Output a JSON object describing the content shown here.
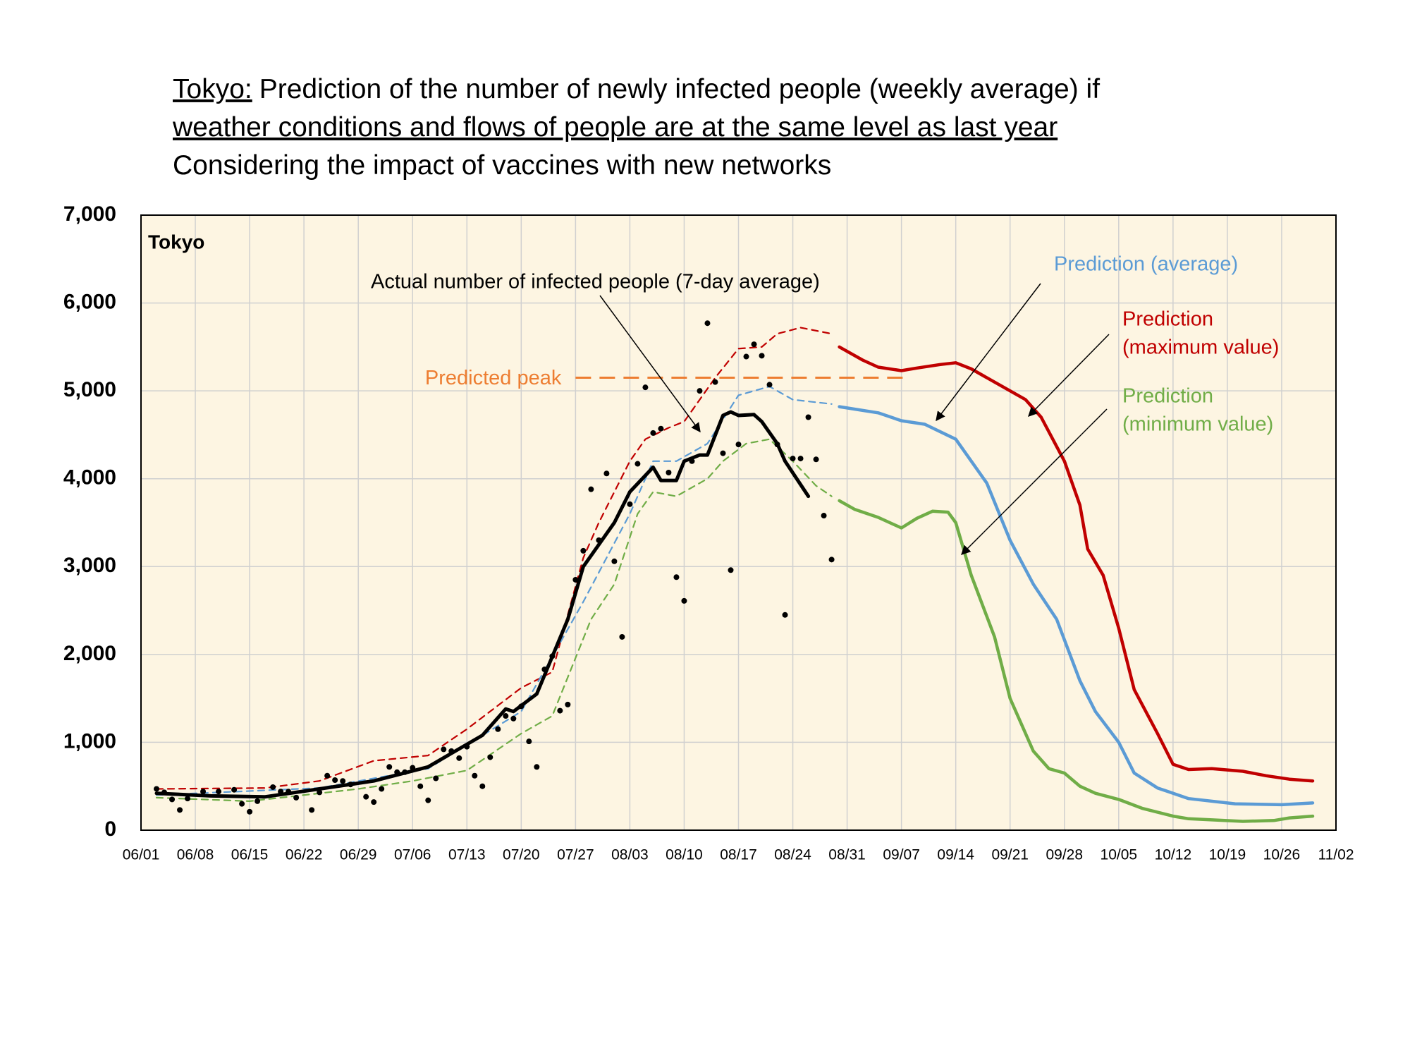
{
  "chart_data": {
    "type": "line",
    "title": [
      [
        {
          "text": "Tokyo:",
          "underline": true
        },
        {
          "text": "Prediction of the number of newly infected people (weekly average) if",
          "underline": false
        }
      ],
      [
        {
          "text": "weather conditions and flows of people are at the same level as last year",
          "underline": true
        }
      ],
      [
        {
          "text": "Considering the impact of vaccines with new networks",
          "underline": false
        }
      ]
    ],
    "inset_label": "Tokyo",
    "xlim": [
      "06/01",
      "11/02"
    ],
    "xticks": [
      "06/01",
      "06/08",
      "06/15",
      "06/22",
      "06/29",
      "07/06",
      "07/13",
      "07/20",
      "07/27",
      "08/03",
      "08/10",
      "08/17",
      "08/24",
      "08/31",
      "09/07",
      "09/14",
      "09/21",
      "09/28",
      "10/05",
      "10/12",
      "10/19",
      "10/26",
      "11/02"
    ],
    "ylim": [
      0,
      7000
    ],
    "yticks": [
      0,
      {
        "value": 1000,
        "label": "1,000"
      },
      {
        "value": 2000,
        "label": "2,000"
      },
      {
        "value": 3000,
        "label": "3,000"
      },
      {
        "value": 4000,
        "label": "4,000"
      },
      {
        "value": 5000,
        "label": "5,000"
      },
      {
        "value": 6000,
        "label": "6,000"
      },
      {
        "value": 7000,
        "label": "7,000"
      }
    ],
    "grid": true,
    "series": [
      {
        "color": "#c00000",
        "dash": true,
        "x": [
          "06/03",
          "06/17",
          "06/24",
          "07/01",
          "07/08",
          "07/13",
          "07/20",
          "07/24",
          "07/28",
          "07/30",
          "08/03",
          "08/05",
          "08/08",
          "08/10",
          "08/14",
          "08/17",
          "08/20",
          "08/22",
          "08/25",
          "08/29"
        ],
        "values": [
          470,
          480,
          560,
          790,
          850,
          1150,
          1620,
          1800,
          3100,
          3500,
          4200,
          4450,
          4580,
          4650,
          5150,
          5480,
          5500,
          5650,
          5720,
          5650
        ]
      },
      {
        "color": "#5b9bd5",
        "dash": true,
        "x": [
          "06/03",
          "06/24",
          "07/08",
          "07/20",
          "07/28",
          "08/03",
          "08/06",
          "08/09",
          "08/13",
          "08/17",
          "08/21",
          "08/24",
          "08/29"
        ],
        "values": [
          400,
          480,
          700,
          1350,
          2600,
          3600,
          4200,
          4200,
          4400,
          4950,
          5050,
          4900,
          4850
        ]
      },
      {
        "color": "#70ad47",
        "dash": true,
        "x": [
          "06/03",
          "06/15",
          "06/29",
          "07/06",
          "07/13",
          "07/20",
          "07/24",
          "07/29",
          "08/01",
          "08/04",
          "08/06",
          "08/09",
          "08/13",
          "08/15",
          "08/18",
          "08/21",
          "08/24",
          "08/27",
          "08/29"
        ],
        "values": [
          370,
          330,
          470,
          560,
          680,
          1100,
          1300,
          2400,
          2800,
          3600,
          3850,
          3800,
          4000,
          4200,
          4400,
          4450,
          4200,
          3920,
          3800
        ]
      },
      {
        "color": "#c00000",
        "dash": false,
        "x": [
          "08/30",
          "09/02",
          "09/04",
          "09/07",
          "09/09",
          "09/12",
          "09/14",
          "09/16",
          "09/19",
          "09/23",
          "09/25",
          "09/28",
          "09/30",
          "10/01",
          "10/03",
          "10/05",
          "10/07",
          "10/10",
          "10/12",
          "10/14",
          "10/17",
          "10/21",
          "10/24",
          "10/27",
          "10/30"
        ],
        "values": [
          5500,
          5350,
          5270,
          5230,
          5260,
          5300,
          5320,
          5250,
          5100,
          4900,
          4700,
          4200,
          3700,
          3200,
          2900,
          2300,
          1600,
          1100,
          750,
          690,
          700,
          670,
          620,
          580,
          560
        ]
      },
      {
        "color": "#5b9bd5",
        "dash": false,
        "x": [
          "08/30",
          "09/04",
          "09/07",
          "09/10",
          "09/14",
          "09/18",
          "09/21",
          "09/24",
          "09/27",
          "09/30",
          "10/02",
          "10/05",
          "10/07",
          "10/10",
          "10/14",
          "10/20",
          "10/26",
          "10/30"
        ],
        "values": [
          4820,
          4750,
          4660,
          4620,
          4450,
          3950,
          3300,
          2800,
          2400,
          1700,
          1350,
          1000,
          650,
          480,
          360,
          300,
          290,
          310
        ]
      },
      {
        "color": "#70ad47",
        "dash": false,
        "x": [
          "08/30",
          "09/01",
          "09/04",
          "09/07",
          "09/09",
          "09/11",
          "09/13",
          "09/14",
          "09/16",
          "09/19",
          "09/21",
          "09/24",
          "09/26",
          "09/28",
          "09/30",
          "10/02",
          "10/05",
          "10/08",
          "10/12",
          "10/14",
          "10/21",
          "10/25",
          "10/27",
          "10/30"
        ],
        "values": [
          3750,
          3650,
          3560,
          3440,
          3550,
          3630,
          3620,
          3500,
          2900,
          2200,
          1500,
          900,
          700,
          650,
          500,
          420,
          350,
          250,
          160,
          130,
          100,
          110,
          140,
          160
        ]
      },
      {
        "color": "#000000",
        "dash": false,
        "bold": true,
        "x": [
          "06/03",
          "06/10",
          "06/17",
          "06/24",
          "07/01",
          "07/08",
          "07/15",
          "07/18",
          "07/19",
          "07/22",
          "07/26",
          "07/28",
          "08/01",
          "08/03",
          "08/06",
          "08/07",
          "08/09",
          "08/10",
          "08/12",
          "08/13",
          "08/15",
          "08/16",
          "08/17",
          "08/19",
          "08/20",
          "08/22",
          "08/23",
          "08/26"
        ],
        "values": [
          420,
          390,
          380,
          470,
          560,
          720,
          1080,
          1380,
          1350,
          1550,
          2400,
          3000,
          3500,
          3850,
          4130,
          3980,
          3980,
          4200,
          4270,
          4270,
          4720,
          4760,
          4720,
          4730,
          4650,
          4400,
          4200,
          3800
        ]
      },
      {
        "color": "#000000",
        "dots": true,
        "x": [
          "06/03",
          "06/04",
          "06/05",
          "06/06",
          "06/07",
          "06/09",
          "06/11",
          "06/13",
          "06/14",
          "06/15",
          "06/16",
          "06/18",
          "06/19",
          "06/20",
          "06/21",
          "06/23",
          "06/24",
          "06/25",
          "06/26",
          "06/27",
          "06/28",
          "06/30",
          "07/01",
          "07/02",
          "07/03",
          "07/04",
          "07/05",
          "07/06",
          "07/07",
          "07/08",
          "07/09",
          "07/10",
          "07/11",
          "07/12",
          "07/13",
          "07/14",
          "07/15",
          "07/16",
          "07/17",
          "07/18",
          "07/19",
          "07/20",
          "07/21",
          "07/22",
          "07/23",
          "07/24",
          "07/25",
          "07/26",
          "07/27",
          "07/28",
          "07/29",
          "07/30",
          "07/31",
          "08/01",
          "08/02",
          "08/03",
          "08/04",
          "08/05",
          "08/06",
          "08/07",
          "08/08",
          "08/09",
          "08/10",
          "08/11",
          "08/12",
          "08/13",
          "08/14",
          "08/15",
          "08/16",
          "08/17",
          "08/18",
          "08/19",
          "08/20",
          "08/21",
          "08/22",
          "08/23",
          "08/24",
          "08/25",
          "08/26",
          "08/27",
          "08/28",
          "08/29"
        ],
        "values": [
          470,
          430,
          350,
          230,
          360,
          440,
          440,
          460,
          300,
          210,
          330,
          490,
          440,
          440,
          370,
          230,
          430,
          620,
          570,
          560,
          520,
          380,
          320,
          470,
          720,
          660,
          660,
          710,
          500,
          340,
          590,
          920,
          900,
          820,
          950,
          620,
          500,
          830,
          1150,
          1300,
          1270,
          1410,
          1010,
          720,
          1830,
          1980,
          1360,
          1430,
          2850,
          3180,
          3880,
          3300,
          4060,
          3060,
          2200,
          3710,
          4170,
          5040,
          4520,
          4570,
          4070,
          2880,
          2610,
          4200,
          5000,
          5770,
          5100,
          4290,
          2960,
          4390,
          5390,
          5530,
          5400,
          5070,
          4390,
          2450,
          4230,
          4230,
          4700,
          4220,
          3580,
          3080
        ]
      }
    ],
    "annotations": [
      {
        "lines": [
          "Actual number of infected people (7-day average)"
        ],
        "color": "#000000"
      },
      {
        "lines": [
          "Prediction (average)"
        ],
        "color": "#5b9bd5"
      },
      {
        "lines": [
          "Prediction",
          "(maximum value)"
        ],
        "color": "#c00000"
      },
      {
        "lines": [
          "Prediction",
          "(minimum value)"
        ],
        "color": "#70ad47"
      }
    ],
    "predicted_peak": {
      "label": "Predicted peak",
      "value": 5150,
      "x": [
        "07/27",
        "09/08"
      ],
      "color": "#ed7d31"
    }
  }
}
